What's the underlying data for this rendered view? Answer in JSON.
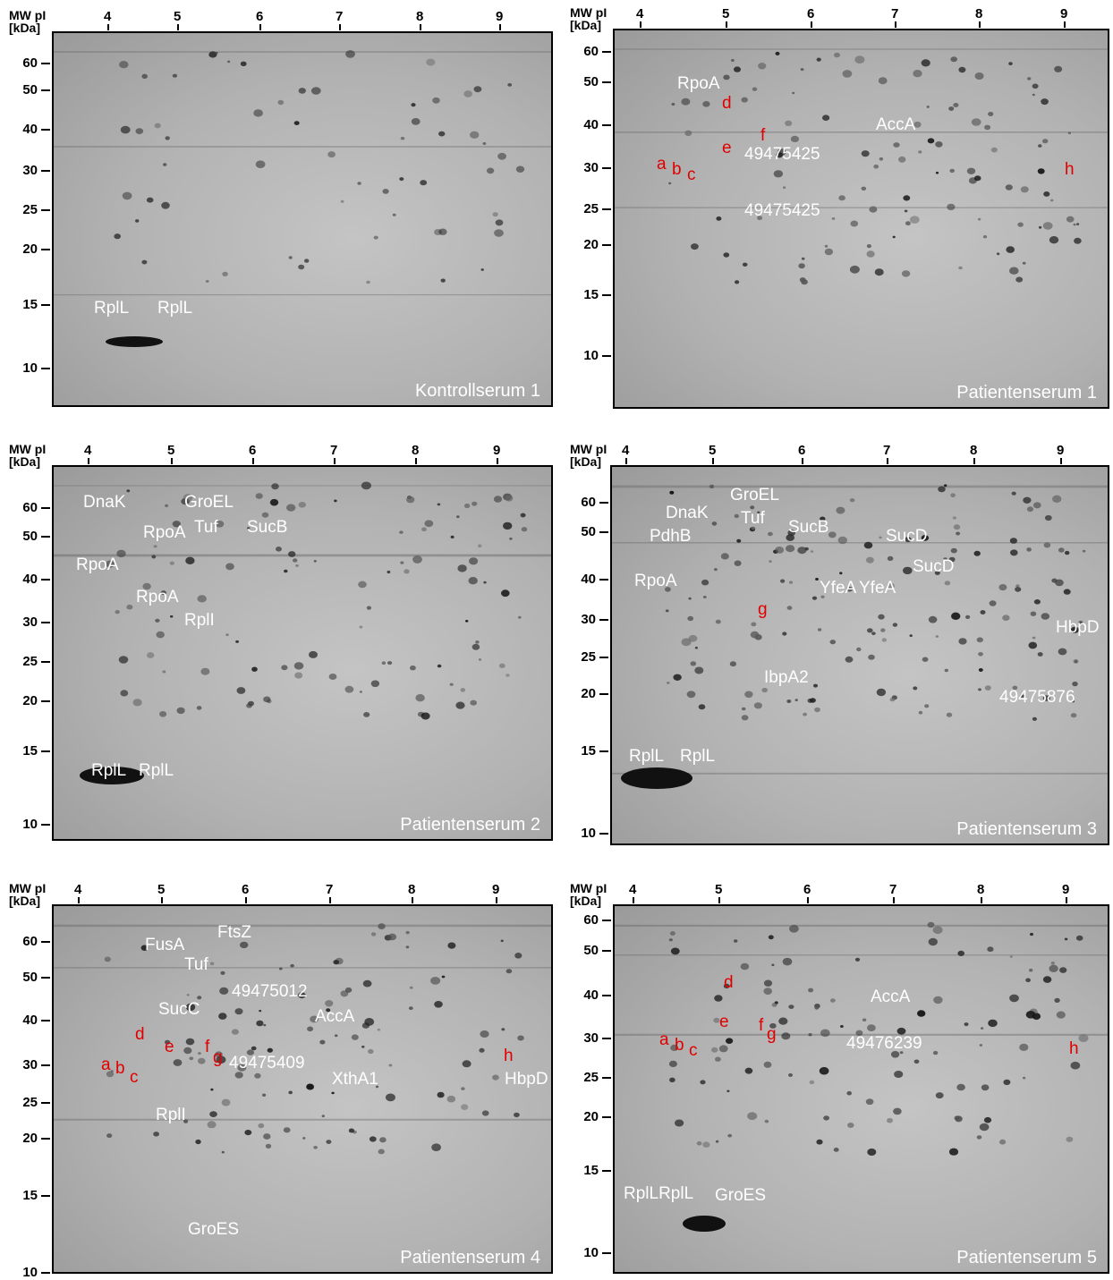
{
  "axis": {
    "mw_label": "MW",
    "pi_label": "pI",
    "unit_label": "[kDa]"
  },
  "panels": [
    {
      "caption": "Kontrollserum 1",
      "pi_ticks": [
        {
          "v": "4",
          "x": 62
        },
        {
          "v": "5",
          "x": 140
        },
        {
          "v": "6",
          "x": 232
        },
        {
          "v": "7",
          "x": 321
        },
        {
          "v": "8",
          "x": 411
        },
        {
          "v": "9",
          "x": 500
        }
      ],
      "mw_ticks": [
        {
          "v": "60",
          "y": 36
        },
        {
          "v": "50",
          "y": 66
        },
        {
          "v": "40",
          "y": 110
        },
        {
          "v": "30",
          "y": 156
        },
        {
          "v": "25",
          "y": 200
        },
        {
          "v": "20",
          "y": 244
        },
        {
          "v": "15",
          "y": 306
        },
        {
          "v": "10",
          "y": 377
        }
      ],
      "labels": [
        {
          "t": "RplL",
          "c": "white",
          "x": 45,
          "y": 303
        },
        {
          "t": "RplL",
          "c": "white",
          "x": 116,
          "y": 303
        }
      ]
    },
    {
      "caption": "Patientenserum 1",
      "pi_ticks": [
        {
          "v": "4",
          "x": 30
        },
        {
          "v": "5",
          "x": 126
        },
        {
          "v": "6",
          "x": 221
        },
        {
          "v": "7",
          "x": 315
        },
        {
          "v": "8",
          "x": 409
        },
        {
          "v": "9",
          "x": 504
        }
      ],
      "mw_ticks": [
        {
          "v": "60",
          "y": 26
        },
        {
          "v": "50",
          "y": 60
        },
        {
          "v": "40",
          "y": 108
        },
        {
          "v": "30",
          "y": 156
        },
        {
          "v": "25",
          "y": 202
        },
        {
          "v": "20",
          "y": 242
        },
        {
          "v": "15",
          "y": 298
        },
        {
          "v": "10",
          "y": 366
        }
      ],
      "labels": [
        {
          "t": "RpoA",
          "c": "white",
          "x": 70,
          "y": 52
        },
        {
          "t": "d",
          "c": "red",
          "x": 120,
          "y": 74
        },
        {
          "t": "e",
          "c": "red",
          "x": 120,
          "y": 124
        },
        {
          "t": "f",
          "c": "red",
          "x": 163,
          "y": 110
        },
        {
          "t": "a",
          "c": "red",
          "x": 47,
          "y": 142
        },
        {
          "t": "b",
          "c": "red",
          "x": 64,
          "y": 148
        },
        {
          "t": "c",
          "c": "red",
          "x": 81,
          "y": 154
        },
        {
          "t": "49475425",
          "c": "white",
          "x": 145,
          "y": 131
        },
        {
          "t": "49475425",
          "c": "white",
          "x": 145,
          "y": 194
        },
        {
          "t": "AccA",
          "c": "white",
          "x": 292,
          "y": 98
        },
        {
          "t": "h",
          "c": "red",
          "x": 503,
          "y": 148
        }
      ]
    },
    {
      "caption": "Patientenserum 2",
      "pi_ticks": [
        {
          "v": "4",
          "x": 40
        },
        {
          "v": "5",
          "x": 133
        },
        {
          "v": "6",
          "x": 224
        },
        {
          "v": "7",
          "x": 315
        },
        {
          "v": "8",
          "x": 406
        },
        {
          "v": "9",
          "x": 497
        }
      ],
      "mw_ticks": [
        {
          "v": "60",
          "y": 48
        },
        {
          "v": "50",
          "y": 80
        },
        {
          "v": "40",
          "y": 128
        },
        {
          "v": "30",
          "y": 176
        },
        {
          "v": "25",
          "y": 220
        },
        {
          "v": "20",
          "y": 264
        },
        {
          "v": "15",
          "y": 320
        },
        {
          "v": "10",
          "y": 402
        }
      ],
      "labels": [
        {
          "t": "DnaK",
          "c": "white",
          "x": 33,
          "y": 30
        },
        {
          "t": "GroEL",
          "c": "white",
          "x": 146,
          "y": 30
        },
        {
          "t": "RpoA",
          "c": "white",
          "x": 100,
          "y": 64
        },
        {
          "t": "Tuf",
          "c": "white",
          "x": 157,
          "y": 58
        },
        {
          "t": "SucB",
          "c": "white",
          "x": 216,
          "y": 58
        },
        {
          "t": "RpoA",
          "c": "white",
          "x": 25,
          "y": 100
        },
        {
          "t": "RpoA",
          "c": "white",
          "x": 92,
          "y": 136
        },
        {
          "t": "RplI",
          "c": "white",
          "x": 146,
          "y": 162
        },
        {
          "t": "RplL",
          "c": "white",
          "x": 42,
          "y": 330
        },
        {
          "t": "RplL",
          "c": "white",
          "x": 95,
          "y": 330
        }
      ]
    },
    {
      "caption": "Patientenserum 3",
      "pi_ticks": [
        {
          "v": "4",
          "x": 17
        },
        {
          "v": "5",
          "x": 114
        },
        {
          "v": "6",
          "x": 214
        },
        {
          "v": "7",
          "x": 309
        },
        {
          "v": "8",
          "x": 406
        },
        {
          "v": "9",
          "x": 503
        }
      ],
      "mw_ticks": [
        {
          "v": "60",
          "y": 42
        },
        {
          "v": "50",
          "y": 75
        },
        {
          "v": "40",
          "y": 128
        },
        {
          "v": "30",
          "y": 173
        },
        {
          "v": "25",
          "y": 215
        },
        {
          "v": "20",
          "y": 256
        },
        {
          "v": "15",
          "y": 320
        },
        {
          "v": "10",
          "y": 412
        }
      ],
      "labels": [
        {
          "t": "GroEL",
          "c": "white",
          "x": 132,
          "y": 22
        },
        {
          "t": "DnaK",
          "c": "white",
          "x": 60,
          "y": 42
        },
        {
          "t": "Tuf",
          "c": "white",
          "x": 144,
          "y": 48
        },
        {
          "t": "SucB",
          "c": "white",
          "x": 197,
          "y": 58
        },
        {
          "t": "PdhB",
          "c": "white",
          "x": 42,
          "y": 68
        },
        {
          "t": "SucD",
          "c": "white",
          "x": 306,
          "y": 68
        },
        {
          "t": "SucD",
          "c": "white",
          "x": 336,
          "y": 102
        },
        {
          "t": "RpoA",
          "c": "white",
          "x": 25,
          "y": 118
        },
        {
          "t": "YfeA",
          "c": "white",
          "x": 232,
          "y": 126
        },
        {
          "t": "YfeA",
          "c": "white",
          "x": 276,
          "y": 126
        },
        {
          "t": "g",
          "c": "red",
          "x": 163,
          "y": 150
        },
        {
          "t": "HbpD",
          "c": "white",
          "x": 496,
          "y": 170
        },
        {
          "t": "IbpA2",
          "c": "white",
          "x": 170,
          "y": 226
        },
        {
          "t": "49475876",
          "c": "white",
          "x": 433,
          "y": 248
        },
        {
          "t": "RplL",
          "c": "white",
          "x": 19,
          "y": 314
        },
        {
          "t": "RplL",
          "c": "white",
          "x": 76,
          "y": 314
        }
      ]
    },
    {
      "caption": "Patientenserum 4",
      "pi_ticks": [
        {
          "v": "4",
          "x": 29
        },
        {
          "v": "5",
          "x": 122
        },
        {
          "v": "6",
          "x": 216
        },
        {
          "v": "7",
          "x": 310
        },
        {
          "v": "8",
          "x": 402
        },
        {
          "v": "9",
          "x": 496
        }
      ],
      "mw_ticks": [
        {
          "v": "60",
          "y": 42
        },
        {
          "v": "50",
          "y": 82
        },
        {
          "v": "40",
          "y": 130
        },
        {
          "v": "30",
          "y": 180
        },
        {
          "v": "25",
          "y": 222
        },
        {
          "v": "20",
          "y": 262
        },
        {
          "v": "15",
          "y": 326
        },
        {
          "v": "10",
          "y": 412
        }
      ],
      "labels": [
        {
          "t": "FtsZ",
          "c": "white",
          "x": 183,
          "y": 18
        },
        {
          "t": "FusA",
          "c": "white",
          "x": 102,
          "y": 32
        },
        {
          "t": "Tuf",
          "c": "white",
          "x": 146,
          "y": 54
        },
        {
          "t": "49475012",
          "c": "white",
          "x": 199,
          "y": 84
        },
        {
          "t": "SucC",
          "c": "white",
          "x": 117,
          "y": 104
        },
        {
          "t": "AccA",
          "c": "white",
          "x": 292,
          "y": 112
        },
        {
          "t": "d",
          "c": "red",
          "x": 91,
          "y": 132
        },
        {
          "t": "e",
          "c": "red",
          "x": 124,
          "y": 146
        },
        {
          "t": "f",
          "c": "red",
          "x": 169,
          "y": 146
        },
        {
          "t": "g",
          "c": "red",
          "x": 178,
          "y": 158
        },
        {
          "t": "49475409",
          "c": "white",
          "x": 196,
          "y": 164
        },
        {
          "t": "a",
          "c": "red",
          "x": 53,
          "y": 166
        },
        {
          "t": "b",
          "c": "red",
          "x": 69,
          "y": 170
        },
        {
          "t": "c",
          "c": "red",
          "x": 85,
          "y": 180
        },
        {
          "t": "h",
          "c": "red",
          "x": 503,
          "y": 156
        },
        {
          "t": "XthA1",
          "c": "white",
          "x": 311,
          "y": 182
        },
        {
          "t": "HbpD",
          "c": "white",
          "x": 504,
          "y": 182
        },
        {
          "t": "RplI",
          "c": "white",
          "x": 114,
          "y": 222
        },
        {
          "t": "GroES",
          "c": "white",
          "x": 150,
          "y": 350
        }
      ]
    },
    {
      "caption": "Patientenserum 5",
      "pi_ticks": [
        {
          "v": "4",
          "x": 22
        },
        {
          "v": "5",
          "x": 118
        },
        {
          "v": "6",
          "x": 217
        },
        {
          "v": "7",
          "x": 313
        },
        {
          "v": "8",
          "x": 411
        },
        {
          "v": "9",
          "x": 506
        }
      ],
      "mw_ticks": [
        {
          "v": "60",
          "y": 18
        },
        {
          "v": "50",
          "y": 52
        },
        {
          "v": "40",
          "y": 102
        },
        {
          "v": "30",
          "y": 150
        },
        {
          "v": "25",
          "y": 194
        },
        {
          "v": "20",
          "y": 238
        },
        {
          "v": "15",
          "y": 298
        },
        {
          "v": "10",
          "y": 390
        }
      ],
      "labels": [
        {
          "t": "d",
          "c": "red",
          "x": 122,
          "y": 74
        },
        {
          "t": "AccA",
          "c": "white",
          "x": 286,
          "y": 90
        },
        {
          "t": "e",
          "c": "red",
          "x": 117,
          "y": 118
        },
        {
          "t": "f",
          "c": "red",
          "x": 161,
          "y": 122
        },
        {
          "t": "g",
          "c": "red",
          "x": 170,
          "y": 132
        },
        {
          "t": "a",
          "c": "red",
          "x": 50,
          "y": 138
        },
        {
          "t": "b",
          "c": "red",
          "x": 67,
          "y": 144
        },
        {
          "t": "c",
          "c": "red",
          "x": 83,
          "y": 150
        },
        {
          "t": "49476239",
          "c": "white",
          "x": 259,
          "y": 142
        },
        {
          "t": "h",
          "c": "red",
          "x": 508,
          "y": 148
        },
        {
          "t": "RplLRplL",
          "c": "white",
          "x": 10,
          "y": 310
        },
        {
          "t": "GroES",
          "c": "white",
          "x": 112,
          "y": 312
        }
      ]
    }
  ]
}
